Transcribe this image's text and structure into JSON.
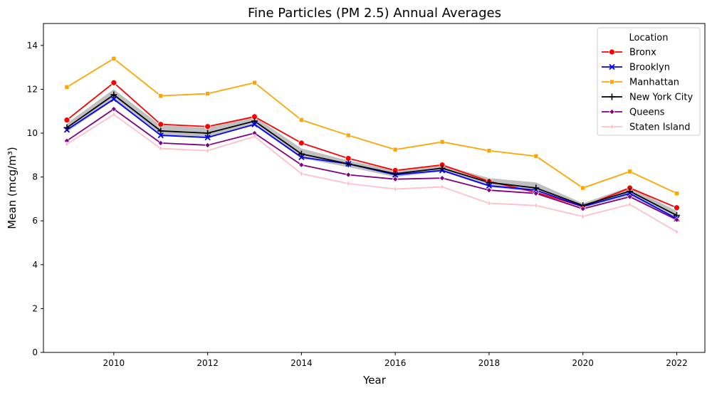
{
  "chart_data": {
    "type": "line",
    "title": "Fine Particles (PM 2.5) Annual Averages",
    "xlabel": "Year",
    "ylabel": "Mean (mcg/m³)",
    "xlim": [
      2008.5,
      2022.6
    ],
    "ylim": [
      0,
      15
    ],
    "x_ticks": [
      2010,
      2012,
      2014,
      2016,
      2018,
      2020,
      2022
    ],
    "y_ticks": [
      0,
      2,
      4,
      6,
      8,
      10,
      12,
      14
    ],
    "grid": false,
    "legend": {
      "title": "Location",
      "placement": "top-right"
    },
    "x": [
      2009,
      2010,
      2011,
      2012,
      2013,
      2014,
      2015,
      2016,
      2017,
      2018,
      2019,
      2020,
      2021,
      2022
    ],
    "series": [
      {
        "name": "Bronx",
        "color": "#ff0000",
        "marker": "circle",
        "values": [
          10.6,
          12.3,
          10.4,
          10.3,
          10.75,
          9.55,
          8.85,
          8.3,
          8.55,
          7.8,
          7.3,
          6.65,
          7.5,
          6.6
        ]
      },
      {
        "name": "Brooklyn",
        "color": "#0000ff",
        "marker": "x",
        "values": [
          10.15,
          11.55,
          9.9,
          9.8,
          10.4,
          8.9,
          8.6,
          8.1,
          8.3,
          7.6,
          7.4,
          6.65,
          7.25,
          6.1
        ]
      },
      {
        "name": "Manhattan",
        "color": "#ffa500",
        "marker": "square",
        "values": [
          12.1,
          13.4,
          11.7,
          11.8,
          12.3,
          10.6,
          9.9,
          9.25,
          9.6,
          9.2,
          8.95,
          7.5,
          8.25,
          7.25
        ]
      },
      {
        "name": "New York City",
        "color": "#000000",
        "marker": "plus",
        "values": [
          10.25,
          11.75,
          10.1,
          10.0,
          10.55,
          9.05,
          8.6,
          8.15,
          8.4,
          7.75,
          7.5,
          6.7,
          7.35,
          6.25
        ]
      },
      {
        "name": "Queens",
        "color": "#800080",
        "marker": "diamond",
        "values": [
          9.65,
          11.1,
          9.55,
          9.45,
          10.0,
          8.55,
          8.1,
          7.9,
          7.95,
          7.4,
          7.25,
          6.55,
          7.1,
          6.05
        ]
      },
      {
        "name": "Staten Island",
        "color": "#ffc0cb",
        "marker": "thin_diamond",
        "values": [
          9.5,
          10.85,
          9.3,
          9.2,
          9.85,
          8.15,
          7.7,
          7.45,
          7.55,
          6.8,
          6.7,
          6.2,
          6.75,
          5.5
        ]
      }
    ],
    "confidence_band": {
      "series": "New York City",
      "color": "#a9a9a9",
      "lower": [
        10.05,
        11.5,
        9.9,
        9.8,
        10.35,
        8.85,
        8.45,
        8.0,
        8.25,
        7.55,
        7.3,
        6.6,
        7.15,
        6.05
      ],
      "upper": [
        10.45,
        12.0,
        10.35,
        10.25,
        10.75,
        9.3,
        8.75,
        8.3,
        8.55,
        7.95,
        7.75,
        6.8,
        7.55,
        6.45
      ]
    }
  }
}
